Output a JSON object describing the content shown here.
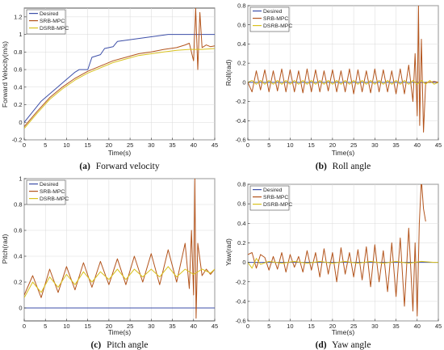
{
  "colors": {
    "desired": "#3d4fa8",
    "srb": "#b3541c",
    "dsrb": "#d9c21e",
    "axis": "#262626",
    "grid": "#d9d9d9",
    "background": "#ffffff"
  },
  "chart_data": [
    {
      "id": "a",
      "type": "line",
      "caption_letter": "(a)",
      "caption_text": "Forward velocity",
      "xlabel": "Time(s)",
      "ylabel": "Forward Velocity(m/s)",
      "xlim": [
        0,
        45
      ],
      "ylim": [
        -0.2,
        1.3
      ],
      "xticks": [
        0,
        5,
        10,
        15,
        20,
        25,
        30,
        35,
        40,
        45
      ],
      "yticks": [
        -0.2,
        0,
        0.2,
        0.4,
        0.6,
        0.8,
        1,
        1.2
      ],
      "grid": true,
      "legend_position": "top-left",
      "series": [
        {
          "name": "Desired",
          "color": "#3d4fa8",
          "x": [
            0,
            4,
            12,
            13,
            15,
            16,
            18,
            19,
            21,
            22,
            34,
            45
          ],
          "y": [
            0,
            0.24,
            0.57,
            0.6,
            0.6,
            0.74,
            0.77,
            0.84,
            0.86,
            0.92,
            1,
            1
          ]
        },
        {
          "name": "SRB-MPC",
          "color": "#b3541c",
          "x": [
            0,
            3,
            6,
            9,
            12,
            15,
            18,
            21,
            24,
            27,
            30,
            33,
            36,
            38,
            39,
            40,
            40.5,
            41,
            41.5,
            42,
            43,
            44,
            45
          ],
          "y": [
            -0.05,
            0.12,
            0.28,
            0.4,
            0.5,
            0.58,
            0.64,
            0.7,
            0.74,
            0.78,
            0.8,
            0.83,
            0.85,
            0.88,
            0.9,
            0.7,
            1.3,
            0.6,
            1.25,
            0.85,
            0.88,
            0.86,
            0.87
          ]
        },
        {
          "name": "DSRB-MPC",
          "color": "#d9c21e",
          "x": [
            0,
            3,
            6,
            9,
            12,
            15,
            18,
            21,
            24,
            27,
            30,
            33,
            36,
            39,
            42,
            45
          ],
          "y": [
            -0.07,
            0.1,
            0.26,
            0.38,
            0.48,
            0.56,
            0.62,
            0.68,
            0.72,
            0.76,
            0.78,
            0.8,
            0.82,
            0.83,
            0.83,
            0.84
          ]
        }
      ]
    },
    {
      "id": "b",
      "type": "line",
      "caption_letter": "(b)",
      "caption_text": "Roll angle",
      "xlabel": "Time(s)",
      "ylabel": "Roll(rad)",
      "xlim": [
        0,
        45
      ],
      "ylim": [
        -0.6,
        0.8
      ],
      "xticks": [
        0,
        5,
        10,
        15,
        20,
        25,
        30,
        35,
        40,
        45
      ],
      "yticks": [
        -0.6,
        -0.4,
        -0.2,
        0,
        0.2,
        0.4,
        0.6,
        0.8
      ],
      "grid": true,
      "legend_position": "top-left",
      "series": [
        {
          "name": "Desired",
          "color": "#3d4fa8",
          "x": [
            0,
            45
          ],
          "y": [
            0,
            0
          ]
        },
        {
          "name": "SRB-MPC",
          "color": "#b3541c",
          "x": [
            0,
            1,
            2,
            3,
            4,
            5,
            6,
            7,
            8,
            9,
            10,
            11,
            12,
            13,
            14,
            15,
            16,
            17,
            18,
            19,
            20,
            21,
            22,
            23,
            24,
            25,
            26,
            27,
            28,
            29,
            30,
            31,
            32,
            33,
            34,
            35,
            36,
            37,
            38,
            39,
            39.5,
            40,
            40.3,
            40.6,
            41,
            41.5,
            42,
            43,
            44,
            45
          ],
          "y": [
            0,
            -0.1,
            0.12,
            -0.08,
            0.13,
            -0.1,
            0.12,
            -0.09,
            0.14,
            -0.1,
            0.13,
            -0.1,
            0.12,
            -0.11,
            0.14,
            -0.1,
            0.13,
            -0.1,
            0.12,
            -0.09,
            0.13,
            -0.1,
            0.12,
            -0.1,
            0.14,
            -0.12,
            0.13,
            -0.1,
            0.12,
            -0.11,
            0.14,
            -0.1,
            0.13,
            -0.1,
            0.12,
            -0.12,
            0.14,
            -0.12,
            0.18,
            -0.2,
            0.3,
            -0.35,
            0.8,
            -0.45,
            0.45,
            -0.52,
            0,
            0,
            0.01,
            0
          ]
        },
        {
          "name": "DSRB-MPC",
          "color": "#d9c21e",
          "x": [
            0,
            1,
            2,
            3,
            4,
            5,
            6,
            7,
            8,
            9,
            10,
            11,
            12,
            13,
            14,
            15,
            16,
            17,
            18,
            19,
            20,
            21,
            22,
            23,
            24,
            25,
            26,
            27,
            28,
            29,
            30,
            31,
            32,
            33,
            34,
            35,
            36,
            37,
            38,
            39,
            40,
            41,
            42,
            43,
            44,
            45
          ],
          "y": [
            0,
            0.02,
            -0.02,
            0.02,
            -0.02,
            0.02,
            -0.02,
            0.02,
            -0.02,
            0.02,
            -0.02,
            0.02,
            -0.02,
            0.02,
            -0.02,
            0.02,
            -0.02,
            0.02,
            -0.02,
            0.02,
            -0.02,
            0.02,
            -0.02,
            0.02,
            -0.02,
            0.02,
            -0.02,
            0.02,
            -0.02,
            0.02,
            -0.02,
            0.02,
            -0.02,
            0.02,
            -0.02,
            0.02,
            -0.02,
            0.02,
            -0.02,
            0.02,
            -0.02,
            0.02,
            -0.02,
            0.02,
            -0.02,
            0
          ]
        }
      ]
    },
    {
      "id": "c",
      "type": "line",
      "caption_letter": "(c)",
      "caption_text": "Pitch angle",
      "xlabel": "Time(s)",
      "ylabel": "Pitch(rad)",
      "xlim": [
        0,
        45
      ],
      "ylim": [
        -0.1,
        1
      ],
      "xticks": [
        0,
        5,
        10,
        15,
        20,
        25,
        30,
        35,
        40,
        45
      ],
      "yticks": [
        0,
        0.2,
        0.4,
        0.6,
        0.8,
        1
      ],
      "grid": true,
      "legend_position": "top-left",
      "series": [
        {
          "name": "Desired",
          "color": "#3d4fa8",
          "x": [
            0,
            45
          ],
          "y": [
            0,
            0
          ]
        },
        {
          "name": "SRB-MPC",
          "color": "#b3541c",
          "x": [
            0,
            2,
            4,
            6,
            8,
            10,
            12,
            14,
            16,
            18,
            20,
            22,
            24,
            26,
            28,
            30,
            32,
            34,
            36,
            38,
            39,
            39.5,
            40,
            40.3,
            40.6,
            41,
            42,
            43,
            44,
            45
          ],
          "y": [
            0.1,
            0.25,
            0.08,
            0.3,
            0.12,
            0.32,
            0.14,
            0.35,
            0.16,
            0.36,
            0.18,
            0.38,
            0.18,
            0.4,
            0.2,
            0.42,
            0.18,
            0.45,
            0.2,
            0.5,
            0.15,
            0.6,
            0.1,
            1,
            -0.08,
            0.5,
            0.25,
            0.3,
            0.26,
            0.3
          ]
        },
        {
          "name": "DSRB-MPC",
          "color": "#d9c21e",
          "x": [
            0,
            2,
            4,
            6,
            8,
            10,
            12,
            14,
            16,
            18,
            20,
            22,
            24,
            26,
            28,
            30,
            32,
            34,
            36,
            38,
            40,
            42,
            44,
            45
          ],
          "y": [
            0.08,
            0.2,
            0.12,
            0.24,
            0.16,
            0.26,
            0.18,
            0.28,
            0.2,
            0.28,
            0.22,
            0.3,
            0.22,
            0.3,
            0.24,
            0.3,
            0.24,
            0.32,
            0.24,
            0.3,
            0.26,
            0.3,
            0.27,
            0.3
          ]
        }
      ]
    },
    {
      "id": "d",
      "type": "line",
      "caption_letter": "(d)",
      "caption_text": "Yaw angle",
      "xlabel": "Time(s)",
      "ylabel": "Yaw(rad)",
      "xlim": [
        0,
        45
      ],
      "ylim": [
        -0.6,
        0.8
      ],
      "xticks": [
        0,
        5,
        10,
        15,
        20,
        25,
        30,
        35,
        40,
        45
      ],
      "yticks": [
        -0.6,
        -0.4,
        -0.2,
        0,
        0.2,
        0.4,
        0.6,
        0.8
      ],
      "grid": true,
      "legend_position": "top-left",
      "series": [
        {
          "name": "Desired",
          "color": "#3d4fa8",
          "x": [
            0,
            45
          ],
          "y": [
            0,
            0
          ]
        },
        {
          "name": "SRB-MPC",
          "color": "#b3541c",
          "x": [
            0,
            1,
            2,
            3,
            4,
            5,
            6,
            7,
            8,
            9,
            10,
            11,
            12,
            13,
            14,
            15,
            16,
            17,
            18,
            19,
            20,
            21,
            22,
            23,
            24,
            25,
            26,
            27,
            28,
            29,
            30,
            31,
            32,
            33,
            34,
            35,
            36,
            37,
            38,
            39,
            39.5,
            40,
            40.5,
            41,
            41.5,
            42
          ],
          "y": [
            0.08,
            0.1,
            -0.06,
            0.08,
            0.05,
            -0.08,
            0.06,
            -0.07,
            0.1,
            -0.1,
            0.08,
            -0.05,
            0.06,
            -0.1,
            0.12,
            -0.08,
            0.1,
            -0.15,
            0.14,
            -0.12,
            0.1,
            -0.2,
            0.15,
            -0.12,
            0.1,
            -0.15,
            0.13,
            -0.18,
            0.16,
            -0.25,
            0.18,
            -0.2,
            0.12,
            -0.3,
            0.2,
            -0.35,
            0.25,
            -0.45,
            0.35,
            -0.5,
            0.2,
            -0.55,
            0.4,
            0.85,
            0.55,
            0.42
          ]
        },
        {
          "name": "DSRB-MPC",
          "color": "#d9c21e",
          "x": [
            0,
            1,
            2,
            3,
            5,
            8,
            11,
            14,
            17,
            20,
            23,
            26,
            29,
            32,
            35,
            38,
            41,
            44,
            45
          ],
          "y": [
            0,
            -0.06,
            0.04,
            -0.02,
            0.01,
            -0.01,
            0.01,
            -0.01,
            0.01,
            -0.01,
            0.01,
            -0.01,
            0.01,
            -0.01,
            0.01,
            -0.01,
            0.01,
            0,
            0
          ]
        }
      ]
    }
  ]
}
